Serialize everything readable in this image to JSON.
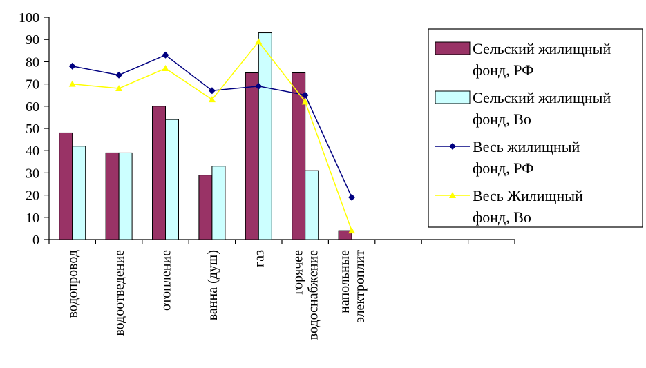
{
  "chart_data": {
    "type": "bar",
    "categories": [
      "водопровод",
      "водоотведение",
      "отопление",
      "ванна (душ)",
      "газ",
      "горячее водоснабжение",
      "напольные электроплит",
      "",
      "",
      ""
    ],
    "ylim": [
      0,
      100
    ],
    "yticks": [
      0,
      10,
      20,
      30,
      40,
      50,
      60,
      70,
      80,
      90,
      100
    ],
    "grid": false,
    "legend_position": "right",
    "series": [
      {
        "name": "Сельский жилищный фонд, РФ",
        "kind": "bar",
        "color": "#993366",
        "values": [
          48,
          39,
          60,
          29,
          75,
          75,
          4,
          null,
          null,
          null
        ]
      },
      {
        "name": "Сельский жилищный фонд, Во",
        "kind": "bar",
        "color": "#ccffff",
        "values": [
          42,
          39,
          54,
          33,
          93,
          31,
          null,
          null,
          null,
          null
        ]
      },
      {
        "name": "Весь жилищный фонд, РФ",
        "kind": "line",
        "color": "#000080",
        "marker": "diamond",
        "values": [
          78,
          74,
          83,
          67,
          69,
          65,
          19,
          null,
          null,
          null
        ]
      },
      {
        "name": "Весь Жилищный фонд, Во",
        "kind": "line",
        "color": "#ffff00",
        "marker": "triangle",
        "values": [
          70,
          68,
          77,
          63,
          89,
          62,
          4,
          null,
          null,
          null
        ]
      }
    ],
    "legend": {
      "entries": [
        {
          "lines": [
            "Сельский жилищный",
            "фонд, РФ"
          ]
        },
        {
          "lines": [
            "Сельский жилищный",
            "фонд, Во"
          ]
        },
        {
          "lines": [
            "Весь жилищный",
            "фонд, РФ"
          ]
        },
        {
          "lines": [
            "Весь Жилищный",
            "фонд, Во"
          ]
        }
      ]
    },
    "category_label_lines": [
      [
        "водопровод"
      ],
      [
        "водоотведение"
      ],
      [
        "отопление"
      ],
      [
        "ванна (душ)"
      ],
      [
        "газ"
      ],
      [
        "горячее",
        "водоснабжение"
      ],
      [
        "напольные",
        "электроплит"
      ],
      [],
      [],
      []
    ]
  }
}
